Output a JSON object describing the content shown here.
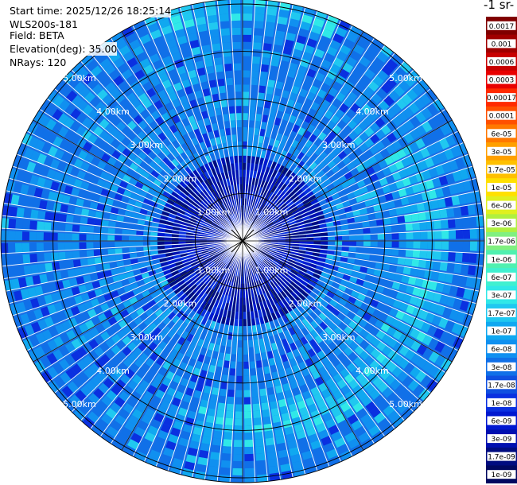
{
  "header": {
    "start_time": "Start time: 2025/12/26 18:25:14",
    "instrument": "WLS200s-181",
    "field": "Field: BETA",
    "elevation": "Elevation(deg): 35.00",
    "nrays": "NRays: 120"
  },
  "chart_data": {
    "type": "heatmap",
    "projection": "polar-ppi",
    "n_rays": 120,
    "range_rings_km": [
      1,
      2,
      3,
      4,
      5
    ],
    "ring_labels": [
      "1.00km",
      "2.00km",
      "3.00km",
      "4.00km",
      "5.00km"
    ],
    "max_range_km": 5.1,
    "colorbar": {
      "title": "-1 sr-",
      "tick_labels": [
        "0.0017",
        "0.001",
        "0.0006",
        "0.0003",
        "0.00017",
        "0.0001",
        "6e-05",
        "3e-05",
        "1.7e-05",
        "1e-05",
        "6e-06",
        "3e-06",
        "1.7e-06",
        "1e-06",
        "6e-07",
        "3e-07",
        "1.7e-07",
        "1e-07",
        "6e-08",
        "3e-08",
        "1.7e-08",
        "1e-08",
        "6e-09",
        "3e-09",
        "1.7e-09",
        "1e-09"
      ],
      "colors": [
        "#800000",
        "#a00000",
        "#c80000",
        "#e80000",
        "#ff2a00",
        "#ff5000",
        "#ff7800",
        "#ffa000",
        "#ffc000",
        "#ffe000",
        "#e0f020",
        "#b0f040",
        "#80f080",
        "#50f0b0",
        "#40f0d0",
        "#30e8e8",
        "#20c8f0",
        "#10a8f0",
        "#1090f0",
        "#1070e8",
        "#1050e0",
        "#0a30e0",
        "#0018d0",
        "#0010b0",
        "#000c80",
        "#000860"
      ]
    },
    "enhanced_band": {
      "range_km_min": 3.5,
      "range_km_max": 4.4,
      "azimuth_deg_min": 60,
      "azimuth_deg_max": 195
    },
    "enhanced_band_north": {
      "range_km_min": 4.6,
      "range_km_max": 5.1,
      "azimuth_deg_min": 335,
      "azimuth_deg_max": 25
    }
  }
}
